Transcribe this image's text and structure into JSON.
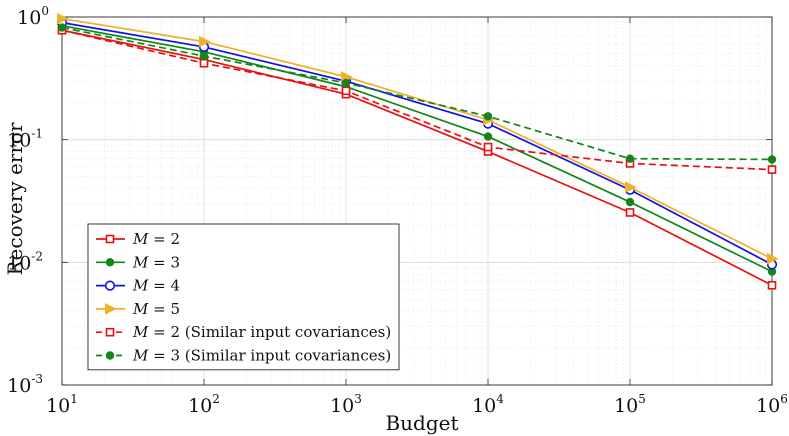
{
  "chart_data": {
    "type": "line",
    "title": "",
    "xlabel": "Budget",
    "ylabel": "Recovery error",
    "xscale": "log",
    "yscale": "log",
    "xlim": [
      10,
      1000000
    ],
    "ylim": [
      0.001,
      1
    ],
    "grid": true,
    "x_ticks": [
      {
        "base": "10",
        "exp": "1"
      },
      {
        "base": "10",
        "exp": "2"
      },
      {
        "base": "10",
        "exp": "3"
      },
      {
        "base": "10",
        "exp": "4"
      },
      {
        "base": "10",
        "exp": "5"
      },
      {
        "base": "10",
        "exp": "6"
      }
    ],
    "y_ticks": [
      {
        "base": "10",
        "exp": "0"
      },
      {
        "base": "10",
        "exp": "-1"
      },
      {
        "base": "10",
        "exp": "-2"
      },
      {
        "base": "10",
        "exp": "-3"
      }
    ],
    "x": [
      10,
      100,
      1000,
      10000,
      100000,
      1000000
    ],
    "series": [
      {
        "name_var": "M",
        "name_eq": " = 2",
        "name_suffix": "",
        "color": "#e81010",
        "dash": "solid",
        "marker": "square",
        "values": [
          0.78,
          0.45,
          0.235,
          0.08,
          0.0255,
          0.0065
        ]
      },
      {
        "name_var": "M",
        "name_eq": " = 3",
        "name_suffix": "",
        "color": "#12861a",
        "dash": "solid",
        "marker": "dot",
        "values": [
          0.85,
          0.52,
          0.27,
          0.106,
          0.031,
          0.0084
        ]
      },
      {
        "name_var": "M",
        "name_eq": " = 4",
        "name_suffix": "",
        "color": "#1010e8",
        "dash": "solid",
        "marker": "circle",
        "values": [
          0.9,
          0.57,
          0.3,
          0.135,
          0.039,
          0.0096
        ]
      },
      {
        "name_var": "M",
        "name_eq": " = 5",
        "name_suffix": "",
        "color": "#edb12a",
        "dash": "solid",
        "marker": "triangle-right",
        "values": [
          0.97,
          0.63,
          0.325,
          0.145,
          0.041,
          0.0107
        ]
      },
      {
        "name_var": "M",
        "name_eq": " = 2",
        "name_suffix": " (Similar input covariances)",
        "color": "#e81010",
        "dash": "dashed",
        "marker": "square-open",
        "values": [
          0.78,
          0.42,
          0.25,
          0.087,
          0.064,
          0.057
        ]
      },
      {
        "name_var": "M",
        "name_eq": " = 3",
        "name_suffix": " (Similar input covariances)",
        "color": "#12861a",
        "dash": "dashed",
        "marker": "dot",
        "values": [
          0.82,
          0.48,
          0.29,
          0.155,
          0.07,
          0.069
        ]
      }
    ],
    "legend": {
      "position": "bottom-left"
    }
  }
}
